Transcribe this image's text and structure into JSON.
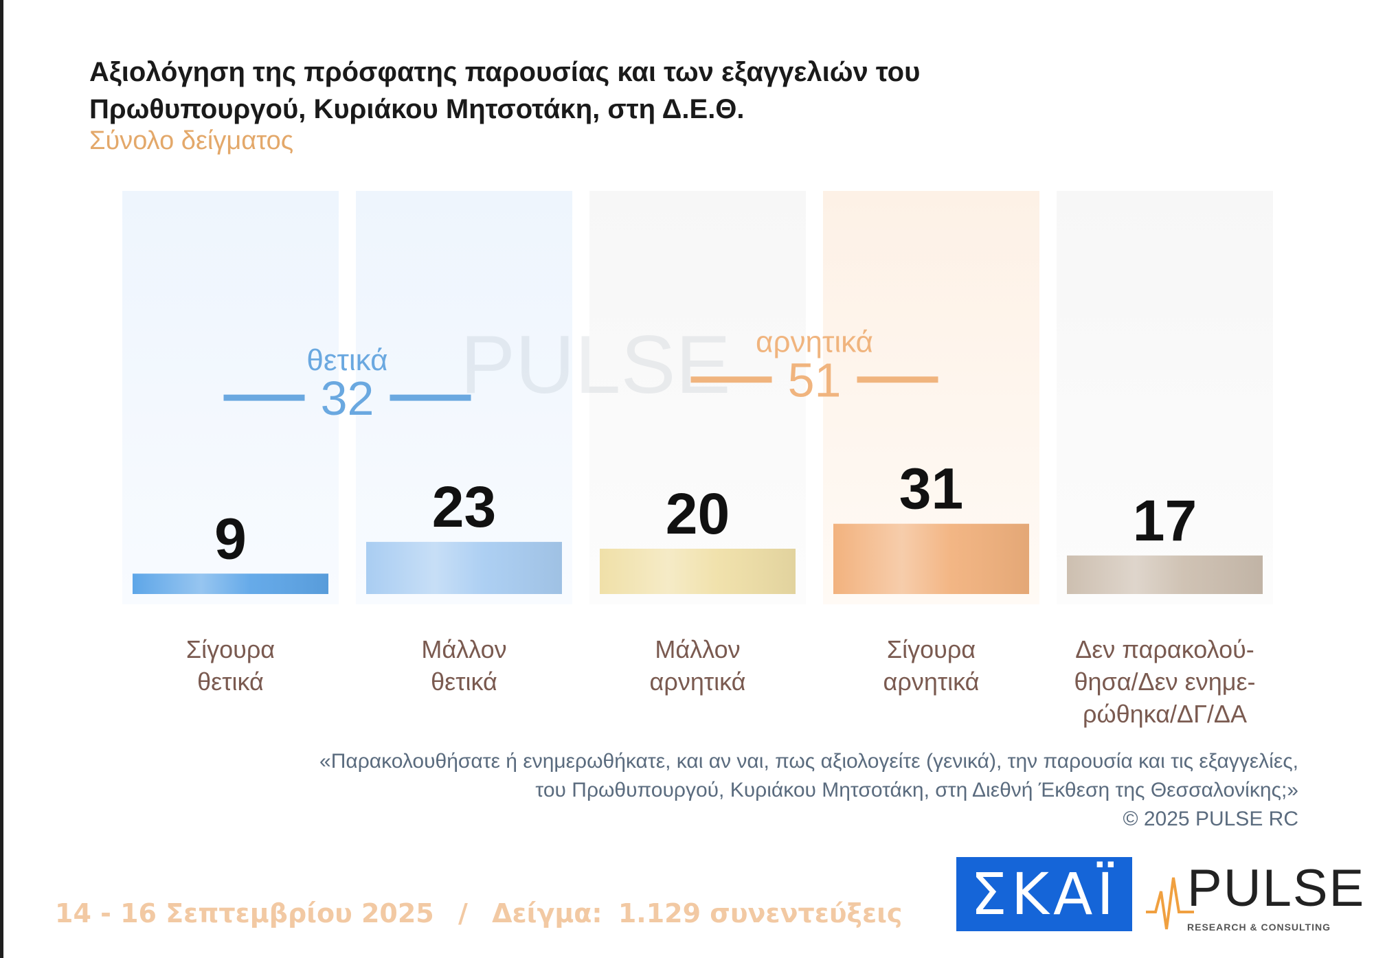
{
  "title_lines": [
    "Αξιολόγηση της πρόσφατης παρουσίας και των εξαγγελιών του",
    "Πρωθυπουργού, Κυριάκου Μητσοτάκη, στη Δ.Ε.Θ."
  ],
  "subtitle": "Σύνολο δείγματος",
  "chart_data": {
    "type": "bar",
    "title": "Αξιολόγηση της πρόσφατης παρουσίας και των εξαγγελιών του Πρωθυπουργού, Κυριάκου Μητσοτάκη, στη Δ.Ε.Θ.",
    "ylim": [
      0,
      60
    ],
    "categories": [
      [
        "Σίγουρα",
        "θετικά"
      ],
      [
        "Μάλλον",
        "θετικά"
      ],
      [
        "Μάλλον",
        "αρνητικά"
      ],
      [
        "Σίγουρα",
        "αρνητικά"
      ],
      [
        "Δεν παρακολού-",
        "θησα/Δεν ενημε-",
        "ρώθηκα/ΔΓ/ΔΑ"
      ]
    ],
    "values": [
      9,
      23,
      20,
      31,
      17
    ],
    "colors": [
      "#5ea6e8",
      "#a9cdf2",
      "#f0e0a8",
      "#f2b27e",
      "#cdbfb0"
    ],
    "groups": [
      {
        "label": "θετικά",
        "value": 32,
        "from": 0,
        "to": 1,
        "color": "#6aa8e0"
      },
      {
        "label": "αρνητικά",
        "value": 51,
        "from": 2,
        "to": 3,
        "color": "#f0b47e"
      }
    ],
    "grid": false,
    "legend": "none"
  },
  "question_lines": [
    "«Παρακολουθήσατε ή ενημερωθήκατε, και αν ναι, πως αξιολογείτε (γενικά), την παρουσία και τις εξαγγελίες,",
    "του Πρωθυπουργού, Κυριάκου Μητσοτάκη, στη Διεθνή Έκθεση της Θεσσαλονίκης;»",
    "©  2025  PULSE RC"
  ],
  "footer": {
    "dates": "14 - 16 Σεπτεμβρίου 2025",
    "separator": "/",
    "sample_label": "Δείγμα:",
    "sample_value": "1.129 συνεντεύξεις"
  },
  "logos": {
    "skai": "ΣΚΑΪ",
    "pulse": "PULSE",
    "pulse_tagline": "RESEARCH & CONSULTING"
  }
}
